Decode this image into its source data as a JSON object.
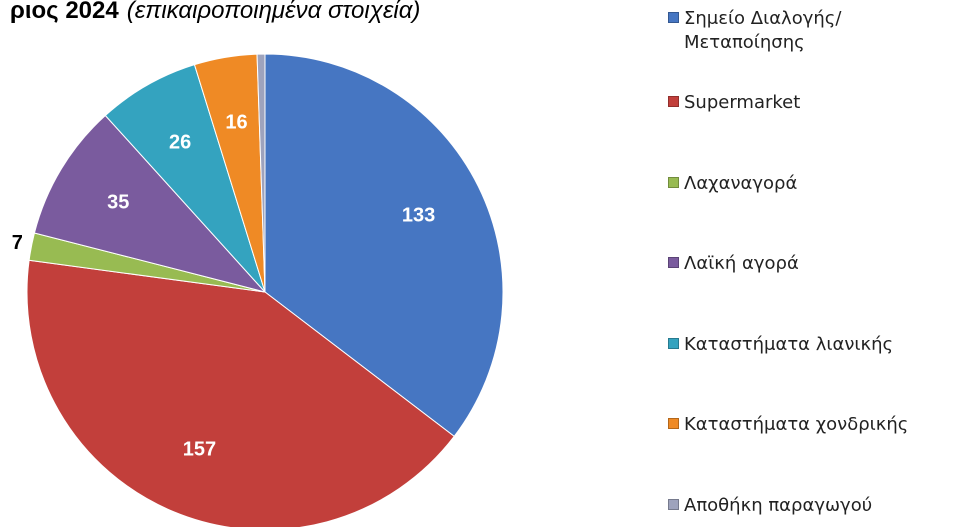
{
  "chart_data": {
    "type": "pie",
    "title": "ριος 2024",
    "subtitle": "(επικαιροποιημένα στοιχεία)",
    "categories": [
      "Σημείο Διαλογής/Μεταποίησης",
      "Supermarket",
      "Λαχαναγορά",
      "Λαϊκή αγορά",
      "Καταστήματα λιανικής",
      "Καταστήματα χονδρικής",
      "Αποθήκη παραγωγού"
    ],
    "values": [
      133,
      157,
      7,
      35,
      26,
      16,
      2
    ],
    "colors": [
      "#4676c2",
      "#c23f3b",
      "#98bb52",
      "#7a5b9e",
      "#34a3bf",
      "#ef8a25",
      "#9ea3bd"
    ],
    "legend": "right"
  }
}
